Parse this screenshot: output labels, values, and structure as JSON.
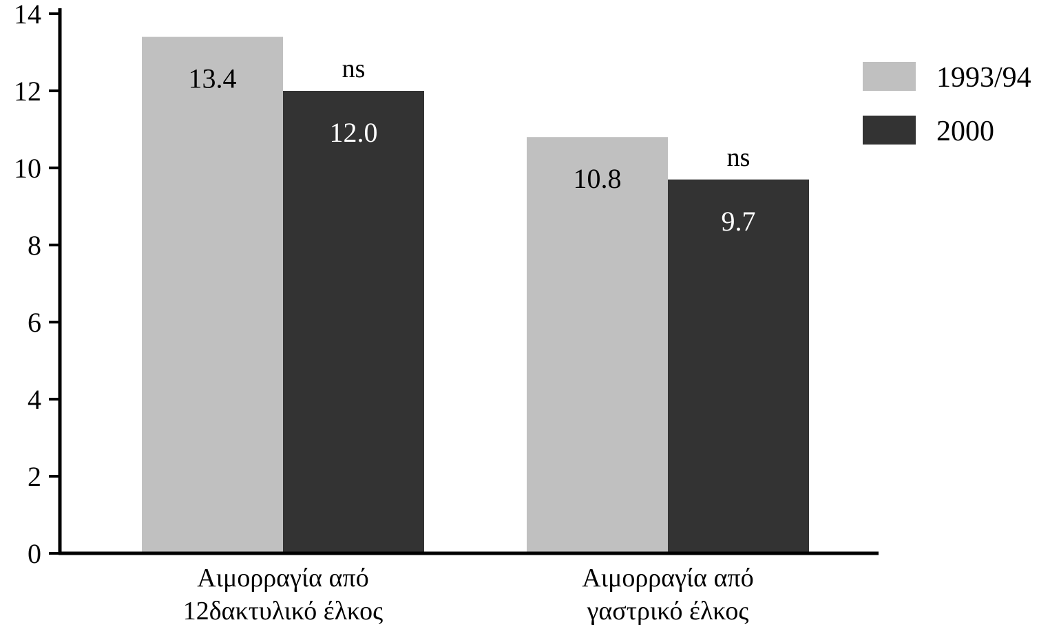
{
  "chart_data": {
    "type": "bar",
    "categories": [
      [
        "Αιμορραγία από",
        "12δακτυλικό έλκος"
      ],
      [
        "Αιμορραγία από",
        "γαστρικό έλκος"
      ]
    ],
    "series": [
      {
        "name": "1993/94",
        "values": [
          13.4,
          10.8
        ],
        "color": "#c0c0c0",
        "label_color": "#000000"
      },
      {
        "name": "2000",
        "values": [
          12.0,
          9.7
        ],
        "color": "#333333",
        "label_color": "#ffffff"
      }
    ],
    "value_labels": [
      [
        "13.4",
        "10.8"
      ],
      [
        "12.0",
        "9.7"
      ]
    ],
    "annotations": [
      {
        "category": 0,
        "series": 1,
        "text": "ns"
      },
      {
        "category": 1,
        "series": 1,
        "text": "ns"
      }
    ],
    "yticks": [
      0,
      2,
      4,
      6,
      8,
      10,
      12,
      14
    ],
    "ylim": [
      0,
      14
    ],
    "title": "",
    "xlabel": "",
    "ylabel": "",
    "grid": false,
    "legend_position": "top-right"
  }
}
